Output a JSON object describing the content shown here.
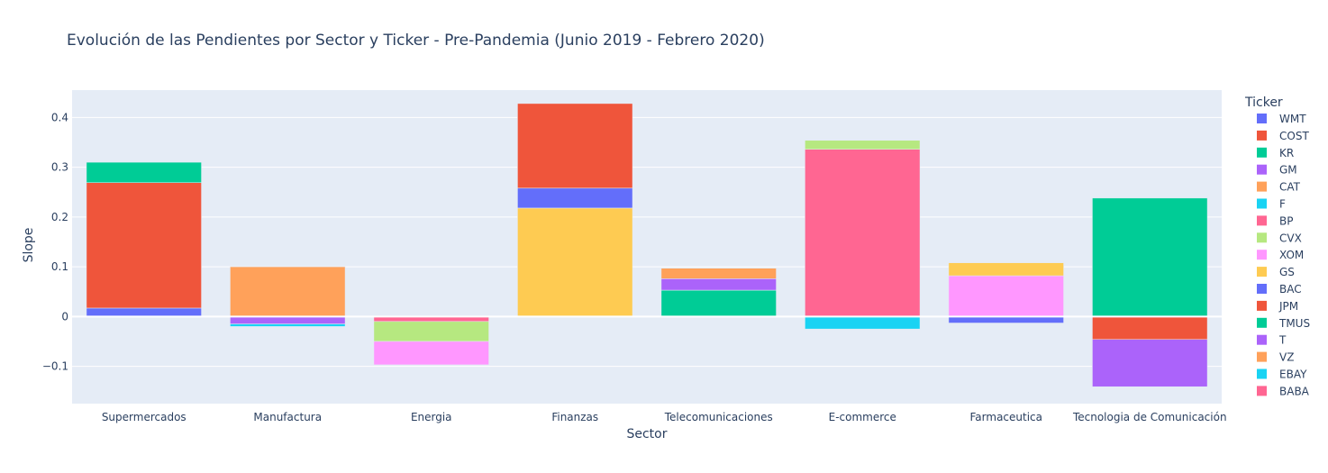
{
  "chart_data": {
    "type": "bar",
    "barmode": "relative",
    "title": "Evolución de las Pendientes por Sector y Ticker - Pre-Pandemia (Junio 2019 - Febrero 2020)",
    "xlabel": "Sector",
    "ylabel": "Slope",
    "ylim": [
      -0.175,
      0.455
    ],
    "yticks": [
      -0.1,
      0,
      0.1,
      0.2,
      0.3,
      0.4
    ],
    "ytick_labels": [
      "−0.1",
      "0",
      "0.1",
      "0.2",
      "0.3",
      "0.4"
    ],
    "grid": true,
    "legend_title": "Ticker",
    "legend_position": "right",
    "categories": [
      "Supermercados",
      "Manufactura",
      "Energia",
      "Finanzas",
      "Telecomunicaciones",
      "E-commerce",
      "Farmaceutica",
      "Tecnologia de Comunicación"
    ],
    "series": [
      {
        "name": "WMT",
        "color": "#636efa",
        "values": [
          0.017,
          null,
          null,
          null,
          null,
          null,
          null,
          null
        ]
      },
      {
        "name": "COST",
        "color": "#ef553b",
        "values": [
          0.252,
          null,
          null,
          null,
          null,
          null,
          null,
          null
        ]
      },
      {
        "name": "KR",
        "color": "#00cc96",
        "values": [
          0.041,
          null,
          null,
          null,
          null,
          null,
          null,
          null
        ]
      },
      {
        "name": "GM",
        "color": "#ab63fa",
        "values": [
          null,
          -0.015,
          null,
          null,
          null,
          null,
          null,
          null
        ]
      },
      {
        "name": "CAT",
        "color": "#ffa15a",
        "values": [
          null,
          0.1,
          null,
          null,
          null,
          null,
          null,
          null
        ]
      },
      {
        "name": "F",
        "color": "#19d3f3",
        "values": [
          null,
          -0.005,
          null,
          null,
          null,
          null,
          null,
          null
        ]
      },
      {
        "name": "BP",
        "color": "#ff6692",
        "values": [
          null,
          null,
          -0.01,
          null,
          null,
          null,
          null,
          null
        ]
      },
      {
        "name": "CVX",
        "color": "#b6e880",
        "values": [
          null,
          null,
          -0.04,
          null,
          null,
          null,
          null,
          null
        ]
      },
      {
        "name": "XOM",
        "color": "#ff97ff",
        "values": [
          null,
          null,
          -0.047,
          null,
          null,
          null,
          null,
          null
        ]
      },
      {
        "name": "GS",
        "color": "#fecb52",
        "values": [
          null,
          null,
          null,
          0.218,
          null,
          null,
          null,
          null
        ]
      },
      {
        "name": "BAC",
        "color": "#636efa",
        "values": [
          null,
          null,
          null,
          0.04,
          null,
          null,
          -0.013,
          null
        ]
      },
      {
        "name": "JPM",
        "color": "#ef553b",
        "values": [
          null,
          null,
          null,
          0.17,
          null,
          null,
          null,
          -0.046
        ]
      },
      {
        "name": "TMUS",
        "color": "#00cc96",
        "values": [
          null,
          null,
          null,
          null,
          0.053,
          null,
          null,
          0.238
        ]
      },
      {
        "name": "T",
        "color": "#ab63fa",
        "values": [
          null,
          null,
          null,
          null,
          0.023,
          null,
          null,
          -0.095
        ]
      },
      {
        "name": "VZ",
        "color": "#ffa15a",
        "values": [
          null,
          null,
          null,
          null,
          0.021,
          null,
          null,
          null
        ]
      },
      {
        "name": "EBAY",
        "color": "#19d3f3",
        "values": [
          null,
          null,
          null,
          null,
          null,
          -0.025,
          null,
          null
        ]
      },
      {
        "name": "BABA",
        "color": "#ff6692",
        "values": [
          null,
          null,
          null,
          null,
          null,
          0.336,
          null,
          null
        ]
      },
      {
        "name": "",
        "color": "#b6e880",
        "values": [
          null,
          null,
          null,
          null,
          null,
          0.018,
          null,
          null
        ]
      },
      {
        "name": "",
        "color": "#ff97ff",
        "values": [
          null,
          null,
          null,
          null,
          null,
          null,
          0.082,
          null
        ]
      },
      {
        "name": "",
        "color": "#fecb52",
        "values": [
          null,
          null,
          null,
          null,
          null,
          null,
          0.026,
          null
        ]
      }
    ]
  }
}
